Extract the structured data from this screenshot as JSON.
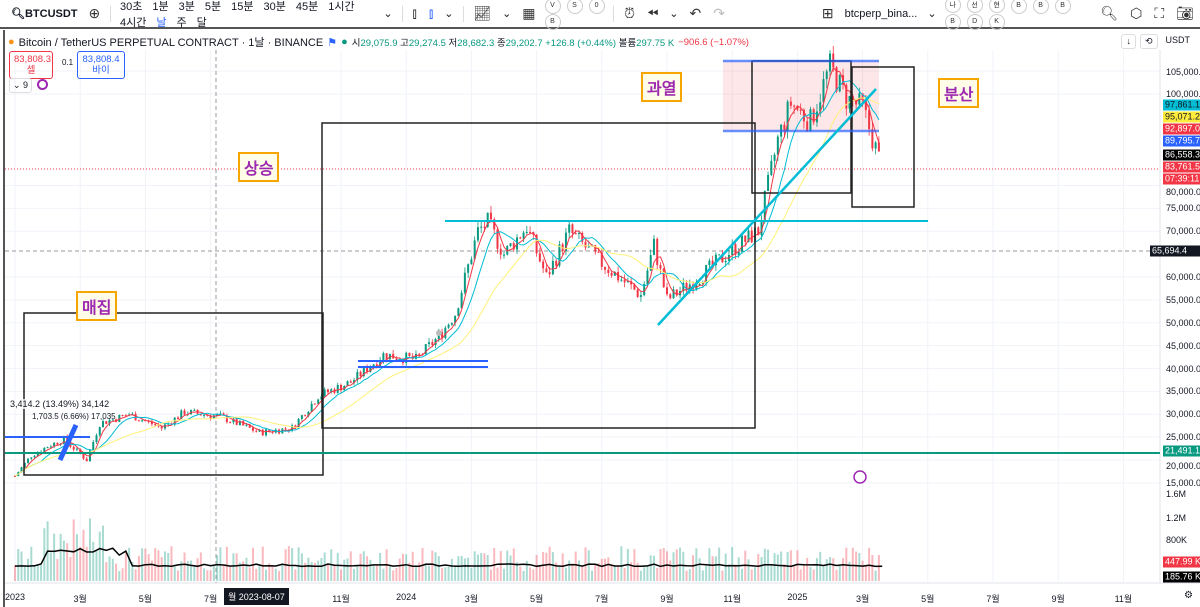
{
  "toolbar": {
    "symbol": "BTCUSDT",
    "intervals": [
      "30초",
      "1분",
      "3분",
      "5분",
      "15분",
      "30분",
      "45분",
      "1시간",
      "4시간",
      "날",
      "주",
      "달"
    ],
    "selected_interval": "날",
    "layout_name": "btcperp_bina...",
    "circle_buttons": [
      "V",
      "S",
      "0",
      "B"
    ],
    "right_circle_buttons": [
      "나",
      "선",
      "현",
      "B",
      "B",
      "B",
      "B",
      "D",
      "K"
    ]
  },
  "legend": {
    "title": "Bitcoin / TetherUS PERPETUAL CONTRACT · 1날 · BINANCE",
    "open_label": "시",
    "open": "29,075.9",
    "high_label": "고",
    "high": "29,274.5",
    "low_label": "저",
    "low": "28,682.3",
    "close_label": "종",
    "close": "29,202.7",
    "change": "+126.8 (+0.44%)",
    "volume_label": "볼륨",
    "volume": "297.75 K",
    "volume_change": "−906.6 (−1.07%)"
  },
  "trade": {
    "sell_price": "83,808.3",
    "sell_label": "셀",
    "spread": "0.1",
    "buy_price": "83,808.4",
    "buy_label": "바이",
    "indicator_count": "9"
  },
  "axis": {
    "currency": "USDT",
    "price_ticks": [
      "105,000.0",
      "100,000.0",
      "80,000.0",
      "75,000.0",
      "70,000.0",
      "60,000.0",
      "55,000.0",
      "50,000.0",
      "45,000.0",
      "40,000.0",
      "35,000.0",
      "30,000.0",
      "25,000.0",
      "20,000.0",
      "15,000.0"
    ],
    "volume_ticks": [
      "1.6M",
      "1.2M",
      "800K"
    ],
    "time_ticks": [
      "2023",
      "3월",
      "5월",
      "7월",
      "11월",
      "2024",
      "3월",
      "5월",
      "7월",
      "9월",
      "11월",
      "2025",
      "3월",
      "5월",
      "7월",
      "9월",
      "11월"
    ],
    "crosshair_date": "월 2023-08-07"
  },
  "price_tags": [
    {
      "value": "97,861.1",
      "color": "#00bcd4",
      "text_color": "#131722"
    },
    {
      "value": "95,071.2",
      "color": "#ffeb3b",
      "text_color": "#131722"
    },
    {
      "value": "92,897.0",
      "color": "#f23645",
      "text_color": "#ffffff"
    },
    {
      "value": "89,795.7",
      "color": "#2962ff",
      "text_color": "#ffffff"
    },
    {
      "value": "86,558.3",
      "color": "#000000",
      "text_color": "#ffffff"
    },
    {
      "value": "83,761.5",
      "color": "#f23645",
      "text_color": "#ffffff"
    },
    {
      "value": "07:39:11",
      "color": "#f23645",
      "text_color": "#ffffff"
    },
    {
      "value": "65,694.4",
      "color": "#131722",
      "text_color": "#ffffff"
    },
    {
      "value": "21,491.1",
      "color": "#089981",
      "text_color": "#ffffff"
    },
    {
      "value": "447.99 K",
      "color": "#f23645",
      "text_color": "#ffffff"
    },
    {
      "value": "185.76 K",
      "color": "#000000",
      "text_color": "#ffffff"
    }
  ],
  "annotations": {
    "accumulation": "매집",
    "markup": "상승",
    "overheat": "과열",
    "distribution": "분산",
    "measure1": "3,414.2 (13.49%) 34,142",
    "measure2": "1,703.5 (6.66%) 17,035"
  },
  "chart_data": {
    "type": "candlestick",
    "x_unit": "months since 2023-01",
    "y_unit": "USDT (thousands)",
    "price_path": [
      [
        0,
        16.5
      ],
      [
        0.5,
        21
      ],
      [
        1,
        23
      ],
      [
        1.5,
        24.5
      ],
      [
        2.2,
        20
      ],
      [
        2.6,
        28
      ],
      [
        3.5,
        30
      ],
      [
        4.5,
        27
      ],
      [
        5.2,
        30.5
      ],
      [
        6.3,
        29.5
      ],
      [
        7.5,
        26
      ],
      [
        8.5,
        27
      ],
      [
        9.3,
        34
      ],
      [
        10.3,
        37
      ],
      [
        11.3,
        43
      ],
      [
        12.3,
        42
      ],
      [
        13,
        47
      ],
      [
        13.5,
        52
      ],
      [
        14.2,
        70
      ],
      [
        14.5,
        72
      ],
      [
        15,
        65
      ],
      [
        15.7,
        71
      ],
      [
        16.3,
        60
      ],
      [
        17,
        70
      ],
      [
        18,
        63
      ],
      [
        19.2,
        56
      ],
      [
        19.6,
        67
      ],
      [
        20,
        55
      ],
      [
        21,
        60
      ],
      [
        22,
        66
      ],
      [
        22.8,
        70
      ],
      [
        23.4,
        90
      ],
      [
        23.8,
        98
      ],
      [
        24.4,
        94
      ],
      [
        25,
        106
      ],
      [
        25.5,
        99
      ],
      [
        26,
        97
      ],
      [
        26.6,
        83.7
      ]
    ],
    "ylim": [
      15,
      108
    ]
  }
}
